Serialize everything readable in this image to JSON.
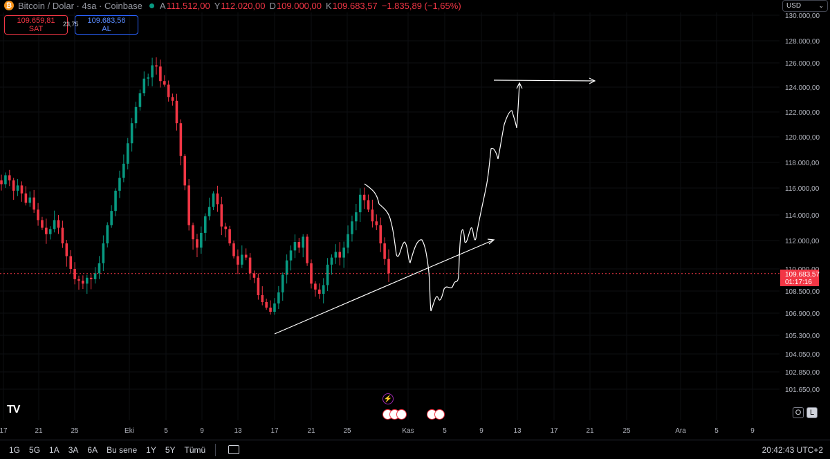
{
  "header": {
    "symbol": "Bitcoin / Dolar · 4sa · Coinbase",
    "open_key": "A",
    "open": "111.512,00",
    "high_key": "Y",
    "high": "112.020,00",
    "low_key": "D",
    "low": "109.000,00",
    "close_key": "K",
    "close": "109.683,57",
    "change": "−1.835,89 (−1,65%)"
  },
  "trade": {
    "sell_price": "109.659,81",
    "sell_label": "SAT",
    "spread": "23,75",
    "buy_price": "109.683,56",
    "buy_label": "AL"
  },
  "currency": "USD",
  "price_axis": {
    "labels": [
      "130.000,00",
      "128.000,00",
      "126.000,00",
      "124.000,00",
      "122.000,00",
      "120.000,00",
      "118.000,00",
      "116.000,00",
      "114.000,00",
      "112.000,00",
      "110.000,00",
      "108.500,00",
      "106.900,00",
      "105.300,00",
      "104.050,00",
      "102.850,00",
      "101.650,00"
    ],
    "current_price": "109.683,57",
    "countdown": "01:17:16"
  },
  "time_axis": {
    "labels": [
      "17",
      "21",
      "25",
      "Eki",
      "5",
      "9",
      "13",
      "17",
      "21",
      "25",
      "Kas",
      "5",
      "9",
      "13",
      "17",
      "21",
      "25",
      "Ara",
      "5",
      "9"
    ]
  },
  "toggles": {
    "o": "O",
    "l": "L"
  },
  "colors": {
    "up": "#089981",
    "down": "#f23645",
    "price_line": "#f23645"
  },
  "bottom": {
    "ranges": [
      "1G",
      "5G",
      "1A",
      "3A",
      "6A",
      "Bu sene",
      "1Y",
      "5Y",
      "Tümü"
    ],
    "clock": "20:42:43 UTC+2"
  },
  "chart_data": {
    "type": "candlestick",
    "interval": "4sa",
    "price_range": [
      101000,
      130500
    ],
    "current_price": 109683.57,
    "closes": [
      116300,
      117000,
      116600,
      115800,
      116200,
      115600,
      114900,
      115300,
      114400,
      113600,
      113000,
      112500,
      112900,
      113600,
      113000,
      111800,
      110900,
      110000,
      109300,
      109200,
      109000,
      109400,
      109300,
      109700,
      110400,
      111800,
      113200,
      114300,
      115800,
      116800,
      117900,
      119500,
      121100,
      122400,
      123500,
      124700,
      124800,
      125800,
      125700,
      124500,
      124200,
      123200,
      122900,
      121100,
      118500,
      116200,
      113200,
      112100,
      111500,
      112600,
      113900,
      114600,
      115600,
      114800,
      113100,
      112900,
      111800,
      110900,
      110300,
      111000,
      110800,
      109700,
      109400,
      108200,
      107700,
      107300,
      107000,
      107600,
      108400,
      109600,
      110600,
      111300,
      111900,
      111500,
      112300,
      110400,
      109000,
      108600,
      108300,
      108900,
      110300,
      110800,
      111200,
      110800,
      111500,
      112500,
      113500,
      114200,
      115500,
      115100,
      114400,
      113500,
      113200,
      111800,
      110700,
      109700
    ]
  },
  "drawings": {
    "trendline": "ascending support line from Oct 17 low",
    "projection": "hand-drawn path up to ~124.500 target",
    "target_line": "horizontal arrow at ~124.500"
  }
}
